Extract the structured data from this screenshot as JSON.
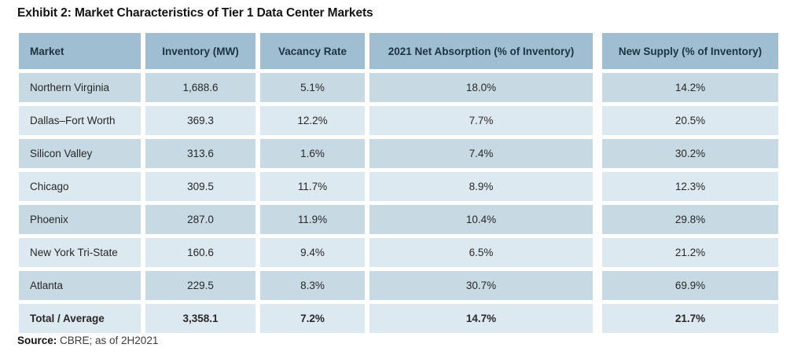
{
  "title": "Exhibit 2: Market Characteristics of Tier 1 Data Center Markets",
  "table": {
    "columns": [
      "Market",
      "Inventory (MW)",
      "Vacancy Rate",
      "2021 Net Absorption (% of Inventory)",
      "New Supply (% of Inventory)"
    ],
    "rows": [
      {
        "cells": [
          "Northern Virginia",
          "1,688.6",
          "5.1%",
          "18.0%",
          "14.2%"
        ]
      },
      {
        "cells": [
          "Dallas–Fort Worth",
          "369.3",
          "12.2%",
          "7.7%",
          "20.5%"
        ]
      },
      {
        "cells": [
          "Silicon Valley",
          "313.6",
          "1.6%",
          "7.4%",
          "30.2%"
        ]
      },
      {
        "cells": [
          "Chicago",
          "309.5",
          "11.7%",
          "8.9%",
          "12.3%"
        ]
      },
      {
        "cells": [
          "Phoenix",
          "287.0",
          "11.9%",
          "10.4%",
          "29.8%"
        ]
      },
      {
        "cells": [
          "New York Tri-State",
          "160.6",
          "9.4%",
          "6.5%",
          "21.2%"
        ]
      },
      {
        "cells": [
          "Atlanta",
          "229.5",
          "8.3%",
          "30.7%",
          "69.9%"
        ]
      },
      {
        "cells": [
          "Total / Average",
          "3,358.1",
          "7.2%",
          "14.7%",
          "21.7%"
        ]
      }
    ]
  },
  "source": {
    "label": "Source:",
    "text": " CBRE; as of 2H2021"
  },
  "colors": {
    "header_bg": "#9fbed2",
    "row_dark_bg": "#c7d9e3",
    "row_light_bg": "#dde9f0",
    "header_text": "#1d3340",
    "cell_text": "#282828"
  },
  "chart_data": {
    "type": "table",
    "title": "Exhibit 2: Market Characteristics of Tier 1 Data Center Markets",
    "columns": [
      "Market",
      "Inventory (MW)",
      "Vacancy Rate",
      "2021 Net Absorption (% of Inventory)",
      "New Supply (% of Inventory)"
    ],
    "rows": [
      [
        "Northern Virginia",
        1688.6,
        "5.1%",
        "18.0%",
        "14.2%"
      ],
      [
        "Dallas–Fort Worth",
        369.3,
        "12.2%",
        "7.7%",
        "20.5%"
      ],
      [
        "Silicon Valley",
        313.6,
        "1.6%",
        "7.4%",
        "30.2%"
      ],
      [
        "Chicago",
        309.5,
        "11.7%",
        "8.9%",
        "12.3%"
      ],
      [
        "Phoenix",
        287.0,
        "11.9%",
        "10.4%",
        "29.8%"
      ],
      [
        "New York Tri-State",
        160.6,
        "9.4%",
        "6.5%",
        "21.2%"
      ],
      [
        "Atlanta",
        229.5,
        "8.3%",
        "30.7%",
        "69.9%"
      ],
      [
        "Total / Average",
        3358.1,
        "7.2%",
        "14.7%",
        "21.7%"
      ]
    ],
    "source": "CBRE; as of 2H2021"
  }
}
